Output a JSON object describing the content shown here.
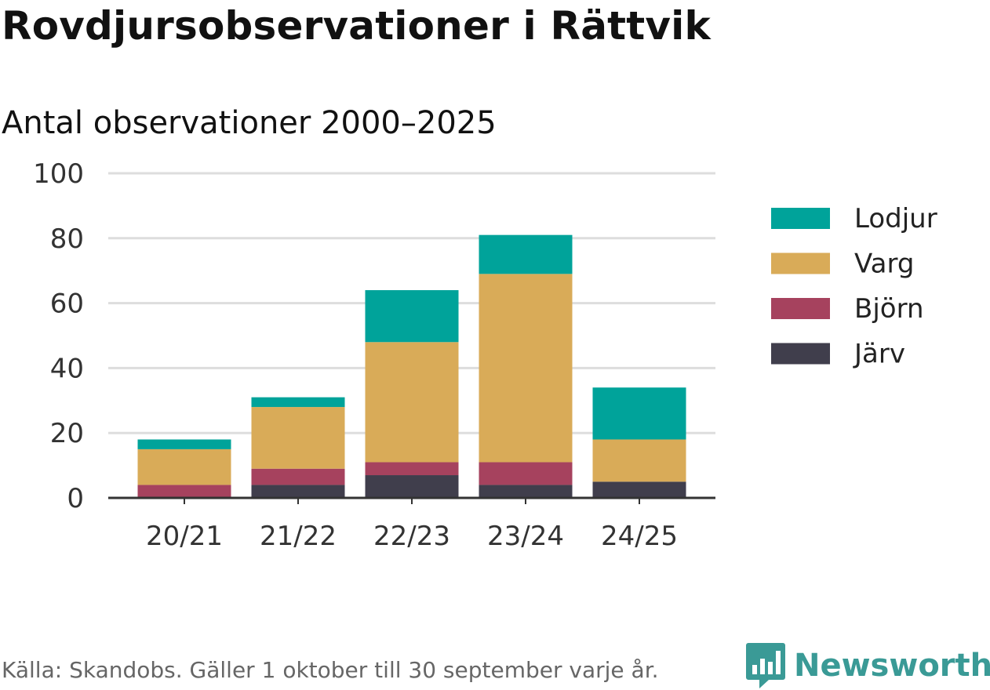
{
  "header": {
    "title": "Rovdjursobservationer i Rättvik",
    "subtitle": "Antal observationer 2000–2025"
  },
  "footer": {
    "source": "Källa: Skandobs. Gäller 1 oktober till 30 september varje år.",
    "brand": "Newsworthy"
  },
  "colors": {
    "Lodjur": "#00a39a",
    "Varg": "#d9ab58",
    "Björn": "#a6425e",
    "Järv": "#403e4c",
    "grid": "#dddddd",
    "axis": "#333333",
    "brand": "#3a9a96"
  },
  "chart_data": {
    "type": "bar",
    "stacked": true,
    "categories": [
      "20/21",
      "21/22",
      "22/23",
      "23/24",
      "24/25"
    ],
    "series": [
      {
        "name": "Järv",
        "values": [
          0,
          4,
          7,
          4,
          5
        ]
      },
      {
        "name": "Björn",
        "values": [
          4,
          5,
          4,
          7,
          0
        ]
      },
      {
        "name": "Varg",
        "values": [
          11,
          19,
          37,
          58,
          13
        ]
      },
      {
        "name": "Lodjur",
        "values": [
          3,
          3,
          16,
          12,
          16
        ]
      }
    ],
    "legend_order": [
      "Lodjur",
      "Varg",
      "Björn",
      "Järv"
    ],
    "ylim": [
      0,
      100
    ],
    "yticks": [
      0,
      20,
      40,
      60,
      80,
      100
    ],
    "grid": true,
    "legend_position": "right"
  }
}
